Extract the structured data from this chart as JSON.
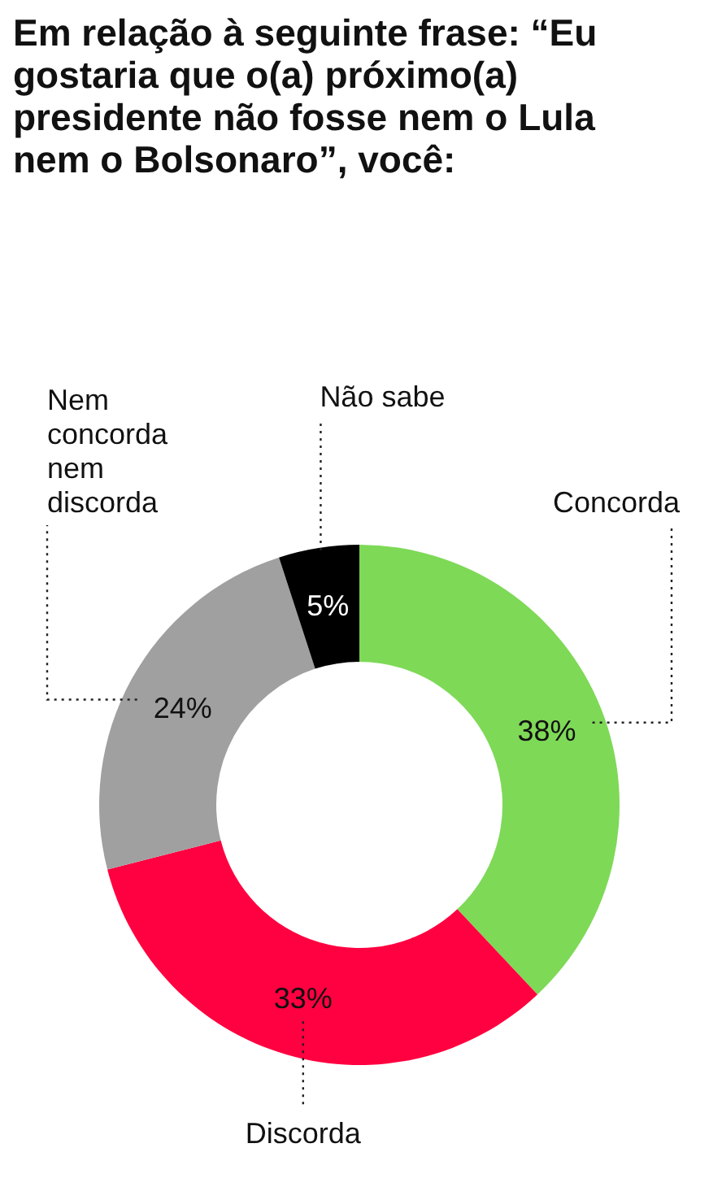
{
  "chart_data": {
    "type": "donut",
    "title": "Em relação à seguinte frase: “Eu gostaria que o(a) próximo(a) presidente não fosse nem o Lula nem o Bolsonaro”, você:",
    "categories": [
      "Concorda",
      "Discorda",
      "Nem concorda nem discorda",
      "Não sabe"
    ],
    "values": [
      38,
      33,
      24,
      5
    ],
    "value_labels": [
      "38%",
      "33%",
      "24%",
      "5%"
    ],
    "colors": [
      "#7ed957",
      "#ff0040",
      "#a0a0a0",
      "#000000"
    ]
  }
}
